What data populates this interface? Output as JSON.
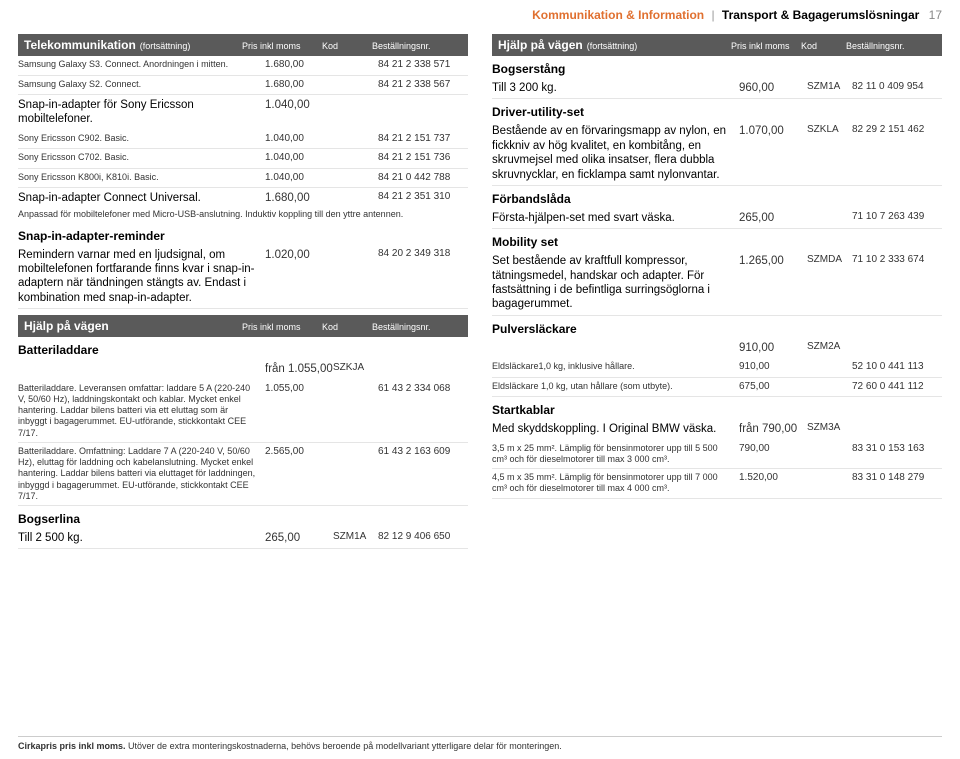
{
  "header": {
    "cat1": "Kommunikation & Information",
    "cat2": "Transport & Bagagerumslösningar",
    "page": "17"
  },
  "colheads": {
    "price": "Pris inkl moms",
    "code": "Kod",
    "order": "Beställningsnr."
  },
  "left": {
    "tele": {
      "title": "Telekommunikation",
      "cont": "(fortsättning)",
      "rows": [
        {
          "d": "Samsung Galaxy S3. Connect. Anordningen i mitten.",
          "p": "1.680,00",
          "c": "",
          "o": "84 21 2 338 571",
          "small": true
        },
        {
          "d": "Samsung Galaxy S2. Connect.",
          "p": "1.680,00",
          "c": "",
          "o": "84 21 2 338 567",
          "small": true
        },
        {
          "d": "Snap-in-adapter för Sony Ericsson mobiltelefoner.",
          "p": "1.040,00",
          "c": "",
          "o": "",
          "big": true,
          "nb": true
        },
        {
          "d": "Sony Ericsson C902. Basic.",
          "p": "1.040,00",
          "c": "",
          "o": "84 21 2 151 737",
          "small": true
        },
        {
          "d": "Sony Ericsson C702. Basic.",
          "p": "1.040,00",
          "c": "",
          "o": "84 21 2 151 736",
          "small": true
        },
        {
          "d": "Sony Ericsson K800i, K810i. Basic.",
          "p": "1.040,00",
          "c": "",
          "o": "84 21 0 442 788",
          "small": true
        },
        {
          "d": "Snap-in-adapter Connect Universal.",
          "p": "1.680,00",
          "c": "",
          "o": "84 21 2 351 310",
          "big": true,
          "nb": true
        }
      ],
      "note": "Anpassad för mobiltelefoner med Micro-USB-anslutning. Induktiv koppling till den yttre antennen.",
      "sub_reminder": "Snap-in-adapter-reminder",
      "reminder_row": {
        "d": "Remindern varnar med en ljudsignal, om mobiltelefonen fortfarande finns kvar i snap-in-adaptern när tändningen stängts av. Endast i kombination med snap-in-adapter.",
        "p": "1.020,00",
        "c": "",
        "o": "84 20 2 349 318",
        "big": true
      }
    },
    "hjalp": {
      "title": "Hjälp på vägen",
      "sub_batt": "Batteriladdare",
      "batt_head": {
        "d": "",
        "p": "från 1.055,00",
        "c": "SZKJA",
        "o": ""
      },
      "batt_rows": [
        {
          "d": "Batteriladdare. Leveransen omfattar: laddare 5 A (220-240 V, 50/60 Hz), laddningskontakt och kablar. Mycket enkel hantering. Laddar bilens batteri via ett eluttag som är inbyggt i bagagerummet. EU-utförande, stickkontakt CEE 7/17.",
          "p": "1.055,00",
          "c": "",
          "o": "61 43 2 334 068",
          "small": true
        },
        {
          "d": "Batteriladdare. Omfattning: Laddare 7 A (220-240 V, 50/60 Hz), eluttag för laddning och kabelanslutning. Mycket enkel hantering. Laddar bilens batteri via eluttaget för laddningen, inbyggd i bagagerummet. EU-utförande, stickkontakt CEE 7/17.",
          "p": "2.565,00",
          "c": "",
          "o": "61 43 2 163 609",
          "small": true
        }
      ],
      "sub_bogserlina": "Bogserlina",
      "bogserlina_row": {
        "d": "Till 2 500 kg.",
        "p": "265,00",
        "c": "SZM1A",
        "o": "82 12 9 406 650",
        "big": true
      }
    }
  },
  "right": {
    "hjalp": {
      "title": "Hjälp på vägen",
      "cont": "(fortsättning)",
      "sub_bogser": "Bogserstång",
      "bogser_row": {
        "d": "Till 3 200 kg.",
        "p": "960,00",
        "c": "SZM1A",
        "o": "82 11 0 409 954",
        "big": true
      },
      "sub_driver": "Driver-utility-set",
      "driver_row": {
        "d": "Bestående av en förvaringsmapp av nylon, en fickkniv av hög kvalitet, en kombitång, en skruvmejsel med olika insatser, flera dubbla skruvnycklar, en ficklampa samt nylonvantar.",
        "p": "1.070,00",
        "c": "SZKLA",
        "o": "82 29 2 151 462",
        "big": true
      },
      "sub_forb": "Förbandslåda",
      "forb_row": {
        "d": "Första-hjälpen-set med svart väska.",
        "p": "265,00",
        "c": "",
        "o": "71 10 7 263 439",
        "big": true
      },
      "sub_mob": "Mobility set",
      "mob_row": {
        "d": "Set bestående av kraftfull kompressor, tätningsmedel, handskar och adapter. För fastsättning i de befintliga surringsöglorna i bagagerummet.",
        "p": "1.265,00",
        "c": "SZMDA",
        "o": "71 10 2 333 674",
        "big": true
      },
      "sub_pulv": "Pulversläckare",
      "pulv_head": {
        "d": "",
        "p": "910,00",
        "c": "SZM2A",
        "o": ""
      },
      "pulv_rows": [
        {
          "d": "Eldsläckare1,0 kg, inklusive hållare.",
          "p": "910,00",
          "c": "",
          "o": "52 10 0 441 113",
          "small": true
        },
        {
          "d": "Eldsläckare 1,0 kg, utan hållare (som utbyte).",
          "p": "675,00",
          "c": "",
          "o": "72 60 0 441 112",
          "small": true
        }
      ],
      "sub_start": "Startkablar",
      "start_head": {
        "d": "Med skyddskoppling. I Original BMW väska.",
        "p": "från 790,00",
        "c": "SZM3A",
        "o": "",
        "big": true
      },
      "start_rows": [
        {
          "d": "3,5 m x 25 mm². Lämplig för bensinmotorer upp till 5 500 cm³ och för dieselmotorer till max 3 000 cm³.",
          "p": "790,00",
          "c": "",
          "o": "83 31 0 153 163",
          "small": true
        },
        {
          "d": "4,5 m x 35 mm². Lämplig för bensinmotorer upp till 7 000 cm³ och för dieselmotorer till max 4 000 cm³.",
          "p": "1.520,00",
          "c": "",
          "o": "83 31 0 148 279",
          "small": true
        }
      ]
    }
  },
  "footer": {
    "b": "Cirkapris pris inkl moms.",
    "rest": " Utöver de extra monteringskostnaderna, behövs beroende på modellvariant ytterligare delar för monteringen."
  }
}
